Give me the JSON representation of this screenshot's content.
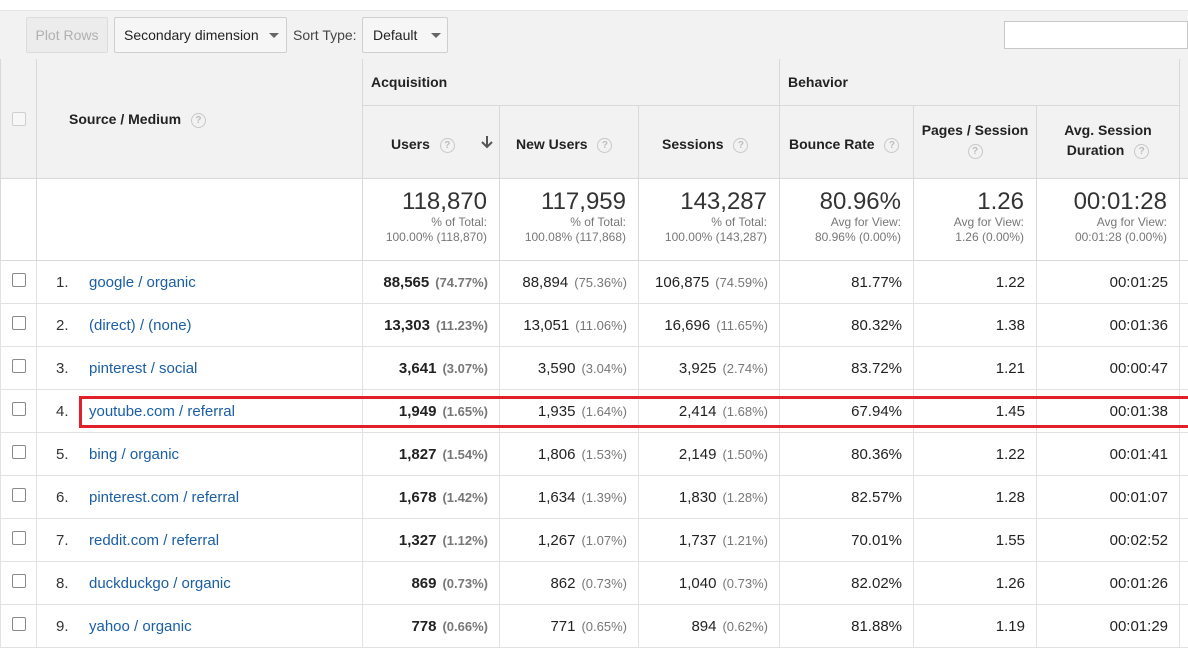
{
  "toolbar": {
    "plot_rows": "Plot Rows",
    "secondary_dimension": "Secondary dimension",
    "sort_type_label": "Sort Type:",
    "sort_type_value": "Default",
    "search_value": ""
  },
  "headers": {
    "source_medium": "Source / Medium",
    "acquisition": "Acquisition",
    "behavior": "Behavior",
    "users": "Users",
    "new_users": "New Users",
    "sessions": "Sessions",
    "bounce_rate": "Bounce Rate",
    "pages_session": "Pages / Session",
    "avg_duration_l1": "Avg. Session",
    "avg_duration_l2": "Duration",
    "help": "?"
  },
  "totals": {
    "users": {
      "big": "118,870",
      "l1": "% of Total:",
      "l2": "100.00% (118,870)"
    },
    "new_users": {
      "big": "117,959",
      "l1": "% of Total:",
      "l2": "100.08% (117,868)"
    },
    "sessions": {
      "big": "143,287",
      "l1": "% of Total:",
      "l2": "100.00% (143,287)"
    },
    "bounce": {
      "big": "80.96%",
      "l1": "Avg for View:",
      "l2": "80.96% (0.00%)"
    },
    "pages": {
      "big": "1.26",
      "l1": "Avg for View:",
      "l2": "1.26 (0.00%)"
    },
    "duration": {
      "big": "00:01:28",
      "l1": "Avg for View:",
      "l2": "00:01:28 (0.00%)"
    }
  },
  "rows": [
    {
      "num": "1.",
      "source": "google / organic",
      "users": "88,565",
      "users_pct": "(74.77%)",
      "new_users": "88,894",
      "new_users_pct": "(75.36%)",
      "sessions": "106,875",
      "sessions_pct": "(74.59%)",
      "bounce": "81.77%",
      "pages": "1.22",
      "duration": "00:01:25"
    },
    {
      "num": "2.",
      "source": "(direct) / (none)",
      "users": "13,303",
      "users_pct": "(11.23%)",
      "new_users": "13,051",
      "new_users_pct": "(11.06%)",
      "sessions": "16,696",
      "sessions_pct": "(11.65%)",
      "bounce": "80.32%",
      "pages": "1.38",
      "duration": "00:01:36"
    },
    {
      "num": "3.",
      "source": "pinterest / social",
      "users": "3,641",
      "users_pct": "(3.07%)",
      "new_users": "3,590",
      "new_users_pct": "(3.04%)",
      "sessions": "3,925",
      "sessions_pct": "(2.74%)",
      "bounce": "83.72%",
      "pages": "1.21",
      "duration": "00:00:47"
    },
    {
      "num": "4.",
      "source": "youtube.com / referral",
      "users": "1,949",
      "users_pct": "(1.65%)",
      "new_users": "1,935",
      "new_users_pct": "(1.64%)",
      "sessions": "2,414",
      "sessions_pct": "(1.68%)",
      "bounce": "67.94%",
      "pages": "1.45",
      "duration": "00:01:38"
    },
    {
      "num": "5.",
      "source": "bing / organic",
      "users": "1,827",
      "users_pct": "(1.54%)",
      "new_users": "1,806",
      "new_users_pct": "(1.53%)",
      "sessions": "2,149",
      "sessions_pct": "(1.50%)",
      "bounce": "80.36%",
      "pages": "1.22",
      "duration": "00:01:41"
    },
    {
      "num": "6.",
      "source": "pinterest.com / referral",
      "users": "1,678",
      "users_pct": "(1.42%)",
      "new_users": "1,634",
      "new_users_pct": "(1.39%)",
      "sessions": "1,830",
      "sessions_pct": "(1.28%)",
      "bounce": "82.57%",
      "pages": "1.28",
      "duration": "00:01:07"
    },
    {
      "num": "7.",
      "source": "reddit.com / referral",
      "users": "1,327",
      "users_pct": "(1.12%)",
      "new_users": "1,267",
      "new_users_pct": "(1.07%)",
      "sessions": "1,737",
      "sessions_pct": "(1.21%)",
      "bounce": "70.01%",
      "pages": "1.55",
      "duration": "00:02:52"
    },
    {
      "num": "8.",
      "source": "duckduckgo / organic",
      "users": "869",
      "users_pct": "(0.73%)",
      "new_users": "862",
      "new_users_pct": "(0.73%)",
      "sessions": "1,040",
      "sessions_pct": "(0.73%)",
      "bounce": "82.02%",
      "pages": "1.26",
      "duration": "00:01:26"
    },
    {
      "num": "9.",
      "source": "yahoo / organic",
      "users": "778",
      "users_pct": "(0.66%)",
      "new_users": "771",
      "new_users_pct": "(0.65%)",
      "sessions": "894",
      "sessions_pct": "(0.62%)",
      "bounce": "81.88%",
      "pages": "1.19",
      "duration": "00:01:29"
    }
  ],
  "colors": {
    "link": "#1a5ea6",
    "highlight": "#e0202a",
    "header_bg": "#f2f2f2"
  }
}
